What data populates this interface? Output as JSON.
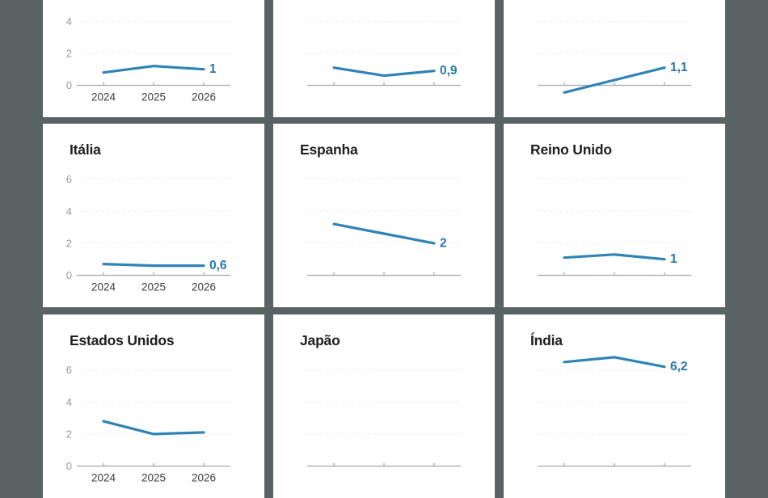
{
  "colors": {
    "background": "#5a6363",
    "panel": "#ffffff",
    "line": "#2e84b6",
    "value_label": "#2678ae",
    "title": "#202020",
    "y_label": "#999999",
    "x_label": "#3d3d3d",
    "gridline": "#dcdcdc",
    "axis": "#a6a6a6"
  },
  "chart_data": {
    "type": "line",
    "x_categories": [
      "2024",
      "2025",
      "2026"
    ],
    "y_tick_labels": [
      "0",
      "2",
      "4",
      "6"
    ],
    "y_gridlines": [
      2,
      4,
      6
    ],
    "ylim": [
      0,
      7
    ],
    "grid": "dotted",
    "panels": [
      {
        "title": "",
        "values": [
          0.8,
          1.2,
          1.0
        ],
        "end_label": "1",
        "show_y_labels": true,
        "show_x_labels": true
      },
      {
        "title": "",
        "values": [
          1.1,
          0.6,
          0.9
        ],
        "end_label": "0,9",
        "show_y_labels": false,
        "show_x_labels": false
      },
      {
        "title": "",
        "values": [
          -0.45,
          0.33,
          1.1
        ],
        "end_label": "1,1",
        "show_y_labels": false,
        "show_x_labels": false
      },
      {
        "title": "Itália",
        "values": [
          0.7,
          0.6,
          0.6
        ],
        "end_label": "0,6",
        "show_y_labels": true,
        "show_x_labels": true
      },
      {
        "title": "Espanha",
        "values": [
          3.2,
          2.6,
          2.0
        ],
        "end_label": "2",
        "show_y_labels": false,
        "show_x_labels": false
      },
      {
        "title": "Reino Unido",
        "values": [
          1.1,
          1.3,
          1.0
        ],
        "end_label": "1",
        "show_y_labels": false,
        "show_x_labels": false
      },
      {
        "title": "Estados Unidos",
        "values": [
          2.8,
          2.0,
          2.1
        ],
        "end_label": "",
        "show_y_labels": true,
        "show_x_labels": true
      },
      {
        "title": "Japão",
        "values": [],
        "end_label": "",
        "show_y_labels": false,
        "show_x_labels": false
      },
      {
        "title": "Índia",
        "values": [
          6.5,
          6.8,
          6.2
        ],
        "end_label": "6,2",
        "show_y_labels": false,
        "show_x_labels": false
      }
    ]
  }
}
